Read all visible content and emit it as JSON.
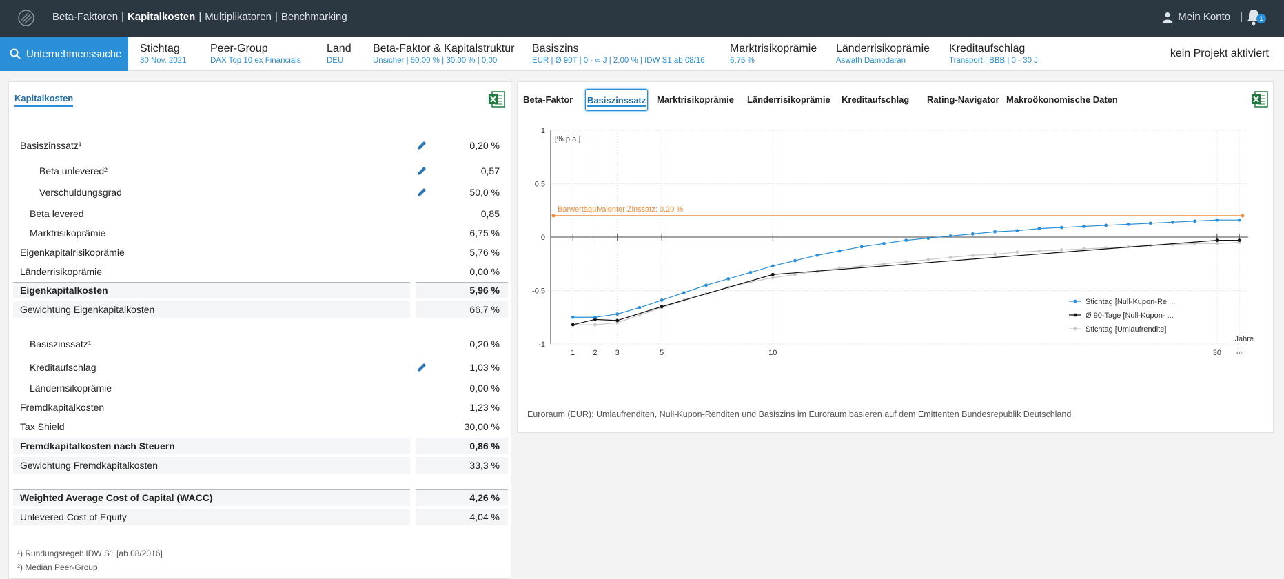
{
  "topnav": {
    "items": [
      "Beta-Faktoren",
      "Kapitalkosten",
      "Multiplikatoren",
      "Benchmarking"
    ],
    "active_index": 1,
    "account_label": "Mein Konto",
    "notification_count": "1"
  },
  "subbar": {
    "search_label": "Unternehmenssuche",
    "params": [
      {
        "label": "Stichtag",
        "value": "30 Nov. 2021"
      },
      {
        "label": "Peer-Group",
        "value": "DAX Top 10 ex Financials"
      },
      {
        "label": "Land",
        "value": "DEU"
      },
      {
        "label": "Beta-Faktor & Kapitalstruktur",
        "value": "Unsicher | 50,00 % | 30,00 % | 0,00"
      },
      {
        "label": "Basiszins",
        "value": "EUR | Ø 90T | 0 - ∞ J | 2,00 % | IDW S1 ab 08/16"
      },
      {
        "label": "Marktrisikoprämie",
        "value": "6,75 %"
      },
      {
        "label": "Länderrisikoprämie",
        "value": "Aswath Damodaran"
      },
      {
        "label": "Kreditaufschlag",
        "value": "Transport | BBB | 0 - 30 J"
      }
    ],
    "project": "kein Projekt aktiviert"
  },
  "left": {
    "tab": "Kapitalkosten",
    "rows": [
      {
        "label": "Basiszinssatz¹",
        "value": "0,20 %",
        "indent": 0,
        "editable": true
      },
      {
        "label": "Beta unlevered²",
        "value": "0,57",
        "indent": 2,
        "editable": true
      },
      {
        "label": "Verschuldungsgrad",
        "value": "50,0 %",
        "indent": 2,
        "editable": true
      },
      {
        "label": "Beta levered",
        "value": "0,85",
        "indent": 1,
        "editable": false
      },
      {
        "label": "Marktrisikoprämie",
        "value": "6,75 %",
        "indent": 1,
        "editable": false
      },
      {
        "label": "Eigenkapitalrisikoprämie",
        "value": "5,76 %",
        "indent": 0,
        "editable": false
      },
      {
        "label": "Länderrisikoprämie",
        "value": "0,00 %",
        "indent": 0,
        "editable": false
      },
      {
        "label": "Eigenkapitalkosten",
        "value": "5,96 %",
        "indent": 0,
        "editable": false,
        "bold": true,
        "shaded": true,
        "border": true
      },
      {
        "label": "Gewichtung Eigenkapitalkosten",
        "value": "66,7 %",
        "indent": 0,
        "editable": false,
        "shaded": true
      },
      {
        "label": "Basiszinssatz¹",
        "value": "0,20 %",
        "indent": 1,
        "editable": false
      },
      {
        "label": "Kreditaufschlag",
        "value": "1,03 %",
        "indent": 1,
        "editable": true
      },
      {
        "label": "Länderrisikoprämie",
        "value": "0,00 %",
        "indent": 1,
        "editable": false
      },
      {
        "label": "Fremdkapitalkosten",
        "value": "1,23 %",
        "indent": 0,
        "editable": false
      },
      {
        "label": "Tax Shield",
        "value": "30,00 %",
        "indent": 0,
        "editable": false
      },
      {
        "label": "Fremdkapitalkosten nach Steuern",
        "value": "0,86 %",
        "indent": 0,
        "editable": false,
        "bold": true,
        "shaded": true,
        "border": true
      },
      {
        "label": "Gewichtung Fremdkapitalkosten",
        "value": "33,3 %",
        "indent": 0,
        "editable": false,
        "shaded": true
      },
      {
        "label": "Weighted Average Cost of Capital (WACC)",
        "value": "4,26 %",
        "indent": 0,
        "editable": false,
        "bold": true,
        "shaded": true,
        "border": true
      },
      {
        "label": "Unlevered Cost of Equity",
        "value": "4,04 %",
        "indent": 0,
        "editable": false,
        "shaded": true
      }
    ],
    "footnotes": [
      "¹) Rundungsregel: IDW S1 [ab 08/2016]",
      "²) Median Peer-Group"
    ]
  },
  "right": {
    "tabs": [
      "Beta-Faktor",
      "Basiszinssatz",
      "Marktrisikoprämie",
      "Länderrisikoprämie",
      "Kreditaufschlag",
      "Rating-Navigator",
      "Makroökonomische Daten"
    ],
    "active_tab": 1,
    "note": "Euroraum (EUR): Umlaufrenditen, Null-Kupon-Renditen und Basiszins im Euroraum basieren auf dem Emittenten Bundesrepublik Deutschland"
  },
  "chart_data": {
    "type": "line",
    "ylabel": "[% p.a.]",
    "xlabel": "Jahre",
    "ylim": [
      -1,
      1
    ],
    "yticks": [
      1,
      0.5,
      0,
      -0.5,
      -1
    ],
    "ytick_labels": [
      "1",
      "0.5",
      "0",
      "-0.5",
      "-1"
    ],
    "xtick_labels": [
      "1",
      "2",
      "3",
      "5",
      "10",
      "30",
      "∞"
    ],
    "reference_line": {
      "label": "Barwertäquivalenter Zinssatz: 0,20 %",
      "value": 0.2,
      "color": "#f08a3a"
    },
    "series": [
      {
        "name": "Stichtag [Null-Kupon-Re ...",
        "color": "#2a8fd6",
        "x": [
          1,
          2,
          3,
          4,
          5,
          6,
          7,
          8,
          9,
          10,
          11,
          12,
          13,
          14,
          15,
          16,
          17,
          18,
          19,
          20,
          21,
          22,
          23,
          24,
          25,
          26,
          27,
          28,
          29,
          30,
          31
        ],
        "y": [
          -0.75,
          -0.75,
          -0.72,
          -0.66,
          -0.59,
          -0.52,
          -0.45,
          -0.39,
          -0.33,
          -0.27,
          -0.22,
          -0.17,
          -0.13,
          -0.09,
          -0.06,
          -0.03,
          -0.01,
          0.01,
          0.03,
          0.05,
          0.06,
          0.08,
          0.09,
          0.1,
          0.11,
          0.12,
          0.13,
          0.14,
          0.15,
          0.16,
          0.16
        ]
      },
      {
        "name": "Ø 90-Tage [Null-Kupon- ...",
        "color": "#111111",
        "x": [
          1,
          2,
          3,
          5,
          10,
          30,
          31
        ],
        "y": [
          -0.82,
          -0.77,
          -0.78,
          -0.65,
          -0.35,
          -0.03,
          -0.03
        ]
      },
      {
        "name": "Stichtag [Umlaufrendite]",
        "color": "#c8c8c8",
        "x": [
          1,
          2,
          3,
          4,
          5,
          6,
          7,
          8,
          9,
          10,
          11,
          12,
          13,
          14,
          15,
          16,
          17,
          18,
          19,
          20,
          21,
          22,
          23,
          24,
          25,
          26,
          27,
          28,
          29,
          30,
          31
        ],
        "y": [
          -0.82,
          -0.82,
          -0.8,
          -0.73,
          -0.66,
          -0.59,
          -0.53,
          -0.47,
          -0.42,
          -0.38,
          -0.35,
          -0.32,
          -0.29,
          -0.27,
          -0.25,
          -0.23,
          -0.21,
          -0.19,
          -0.17,
          -0.16,
          -0.14,
          -0.13,
          -0.12,
          -0.11,
          -0.1,
          -0.09,
          -0.08,
          -0.07,
          -0.06,
          -0.06,
          -0.05
        ]
      }
    ],
    "legend_position": "bottom-right"
  }
}
